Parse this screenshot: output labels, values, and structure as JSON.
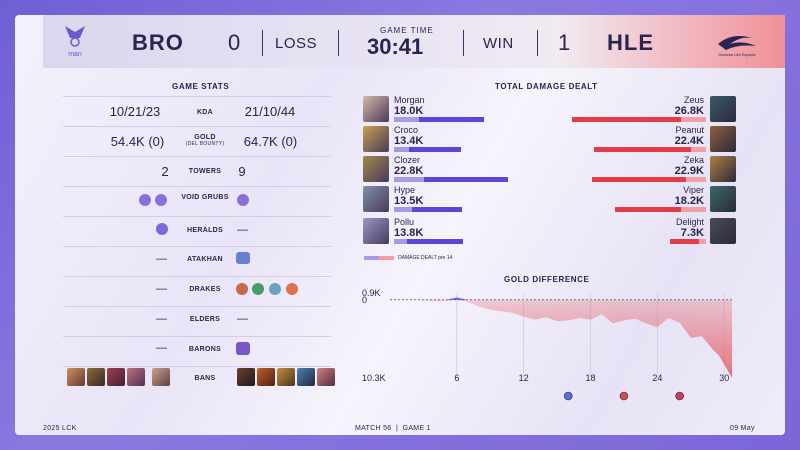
{
  "header": {
    "left_team": "BRO",
    "left_score": "0",
    "left_result": "LOSS",
    "game_time_label": "GAME TIME",
    "game_time": "30:41",
    "right_result": "WIN",
    "right_score": "1",
    "right_team": "HLE",
    "left_logo_text": "man",
    "right_logo_text": "Hanwha Life Esports"
  },
  "stats": {
    "title": "GAME STATS",
    "kda": {
      "label": "KDA",
      "left": "10/21/23",
      "right": "21/10/44"
    },
    "gold": {
      "label": "GOLD",
      "sublabel": "(DEL BOUNTY)",
      "left": "54.4K (0)",
      "right": "64.7K (0)"
    },
    "towers": {
      "label": "TOWERS",
      "left": "2",
      "right": "9"
    },
    "void_grubs": {
      "label": "VOID GRUBS"
    },
    "heralds": {
      "label": "HERALDS",
      "right": "—"
    },
    "atakhan": {
      "label": "ATAKHAN",
      "left": "—"
    },
    "drakes": {
      "label": "DRAKES",
      "left": "—"
    },
    "elders": {
      "label": "ELDERS",
      "left": "—",
      "right": "—"
    },
    "barons": {
      "label": "BARONS",
      "left": "—"
    },
    "bans": {
      "label": "BANS"
    }
  },
  "damage": {
    "title": "TOTAL DAMAGE DEALT",
    "legend": "DAMAGE DEALT pre 14",
    "left": [
      {
        "name": "Morgan",
        "dmg": "18.0K",
        "value": 18.0,
        "pre14": 5.0
      },
      {
        "name": "Croco",
        "dmg": "13.4K",
        "value": 13.4,
        "pre14": 3.0
      },
      {
        "name": "Clozer",
        "dmg": "22.8K",
        "value": 22.8,
        "pre14": 6.0
      },
      {
        "name": "Hype",
        "dmg": "13.5K",
        "value": 13.5,
        "pre14": 3.5
      },
      {
        "name": "Pollu",
        "dmg": "13.8K",
        "value": 13.8,
        "pre14": 2.5
      }
    ],
    "right": [
      {
        "name": "Zeus",
        "dmg": "26.8K",
        "value": 26.8,
        "pre14": 5.0
      },
      {
        "name": "Peanut",
        "dmg": "22.4K",
        "value": 22.4,
        "pre14": 3.0
      },
      {
        "name": "Zeka",
        "dmg": "22.9K",
        "value": 22.9,
        "pre14": 4.0
      },
      {
        "name": "Viper",
        "dmg": "18.2K",
        "value": 18.2,
        "pre14": 5.0
      },
      {
        "name": "Delight",
        "dmg": "7.3K",
        "value": 7.3,
        "pre14": 1.5
      }
    ],
    "colors": {
      "left": "#5a46d8",
      "left_pre": "#a79be8",
      "right": "#e23c46",
      "right_pre": "#f0a0a4"
    }
  },
  "chart_data": {
    "type": "area",
    "title": "GOLD DIFFERENCE",
    "xlabel": "",
    "ylabel": "",
    "x_ticks": [
      "6",
      "12",
      "18",
      "24",
      "30"
    ],
    "y_labels": [
      "0.9K",
      "0",
      "10.3K"
    ],
    "ylim": [
      -10300,
      900
    ],
    "xlim": [
      0,
      30.7
    ],
    "x": [
      0,
      1,
      2,
      3,
      4,
      5,
      6,
      7,
      8,
      9,
      10,
      11,
      12,
      13,
      14,
      15,
      16,
      17,
      18,
      19,
      20,
      21,
      22,
      23,
      24,
      25,
      26,
      27,
      28,
      29,
      29.5,
      30,
      30.7
    ],
    "values": [
      0,
      0,
      0,
      -100,
      -200,
      -150,
      300,
      -300,
      -900,
      -1300,
      -1500,
      -1700,
      -2200,
      -2600,
      -2300,
      -2800,
      -2700,
      -2400,
      -2600,
      -1900,
      -3100,
      -2700,
      -2500,
      -3100,
      -3600,
      -2400,
      -3000,
      -5000,
      -4800,
      -6600,
      -7300,
      -8500,
      -10300
    ],
    "colors": {
      "positive": "#5a46d8",
      "negative": "#e2575e"
    },
    "event_markers": [
      "herald-icon",
      "drake-icon",
      "baron-icon"
    ]
  },
  "footer": {
    "left": "2025 LCK",
    "center": "MATCH 56  |  GAME 1",
    "right": "09 May"
  }
}
